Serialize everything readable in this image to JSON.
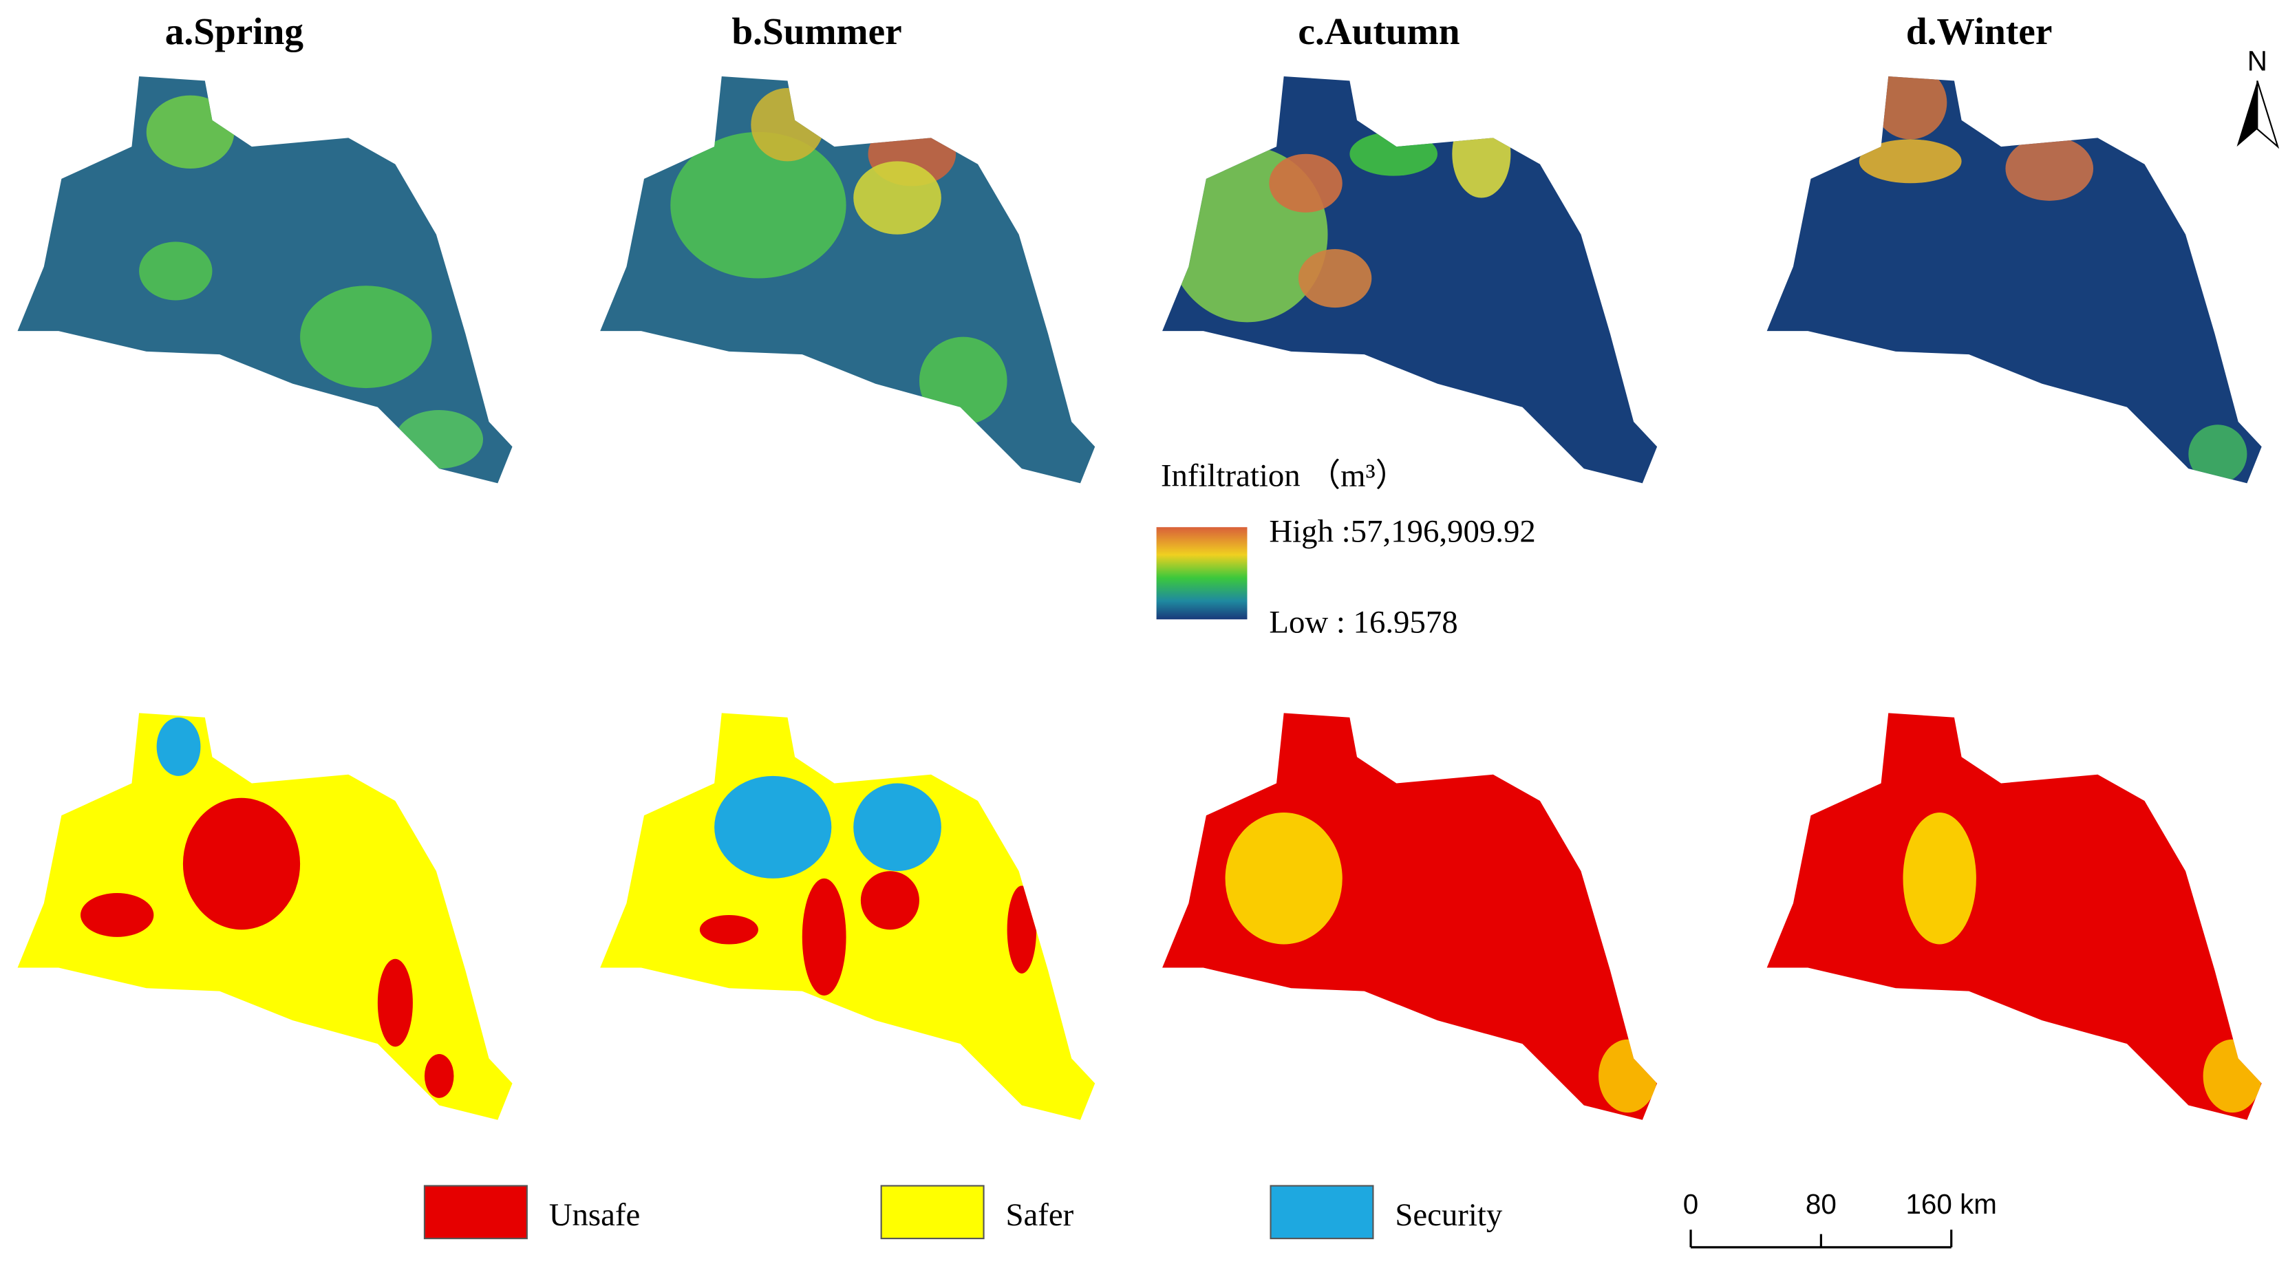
{
  "panels": [
    {
      "title": "a.Spring"
    },
    {
      "title": "b.Summer"
    },
    {
      "title": "c.Autumn"
    },
    {
      "title": "d.Winter"
    }
  ],
  "infiltration_legend": {
    "title": "Infiltration （m³）",
    "high": "High :57,196,909.92",
    "low": "Low : 16.9578"
  },
  "safety_legend": [
    {
      "label": "Unsafe",
      "color": "#e60000"
    },
    {
      "label": "Safer",
      "color": "#ffff00"
    },
    {
      "label": "Security",
      "color": "#1ea8e0"
    }
  ],
  "scale_bar": {
    "labels": [
      "0",
      "80",
      "160 km"
    ]
  },
  "north": "N"
}
